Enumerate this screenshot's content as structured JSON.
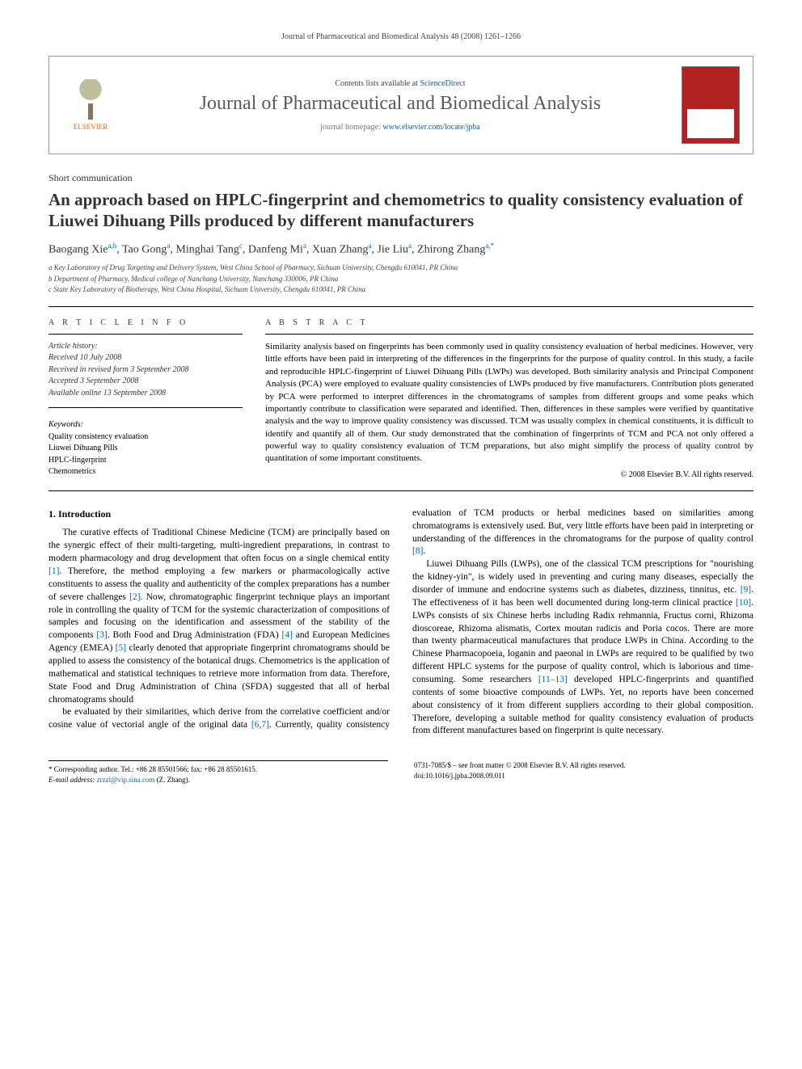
{
  "running_head": "Journal of Pharmaceutical and Biomedical Analysis 48 (2008) 1261–1266",
  "header": {
    "publisher": "ELSEVIER",
    "contents_prefix": "Contents lists available at ",
    "contents_link": "ScienceDirect",
    "journal_name": "Journal of Pharmaceutical and Biomedical Analysis",
    "homepage_prefix": "journal homepage: ",
    "homepage_link": "www.elsevier.com/locate/jpba"
  },
  "article": {
    "type": "Short communication",
    "title": "An approach based on HPLC-fingerprint and chemometrics to quality consistency evaluation of Liuwei Dihuang Pills produced by different manufacturers",
    "authors_html": "Baogang Xie<sup>a,b</sup>, Tao Gong<sup>a</sup>, Minghai Tang<sup>c</sup>, Danfeng Mi<sup>a</sup>, Xuan Zhang<sup>a</sup>, Jie Liu<sup>a</sup>, Zhirong Zhang<sup>a,*</sup>",
    "affiliations": [
      "a Key Laboratory of Drug Targeting and Delivery System, West China School of Pharmacy, Sichuan University, Chengdu 610041, PR China",
      "b Department of Pharmacy, Medical college of Nanchang University, Nanchang 330006, PR China",
      "c State Key Laboratory of Biotherapy, West China Hospital, Sichuan University, Chengdu 610041, PR China"
    ]
  },
  "info": {
    "heading": "A R T I C L E   I N F O",
    "history_label": "Article history:",
    "history": [
      "Received 10 July 2008",
      "Received in revised form 3 September 2008",
      "Accepted 3 September 2008",
      "Available online 13 September 2008"
    ],
    "keywords_label": "Keywords:",
    "keywords": [
      "Quality consistency evaluation",
      "Liuwei Dihuang Pills",
      "HPLC-fingerprint",
      "Chemometrics"
    ]
  },
  "abstract": {
    "heading": "A B S T R A C T",
    "body": "Similarity analysis based on fingerprints has been commonly used in quality consistency evaluation of herbal medicines. However, very little efforts have been paid in interpreting of the differences in the fingerprints for the purpose of quality control. In this study, a facile and reproducible HPLC-fingerprint of Liuwei Dihuang Pills (LWPs) was developed. Both similarity analysis and Principal Component Analysis (PCA) were employed to evaluate quality consistencies of LWPs produced by five manufacturers. Contribution plots generated by PCA were performed to interpret differences in the chromatograms of samples from different groups and some peaks which importantly contribute to classification were separated and identified. Then, differences in these samples were verified by quantitative analysis and the way to improve quality consistency was discussed. TCM was usually complex in chemical constituents, it is difficult to identify and quantify all of them. Our study demonstrated that the combination of fingerprints of TCM and PCA not only offered a powerful way to quality consistency evaluation of TCM preparations, but also might simplify the process of quality control by quantitation of some important constituents.",
    "copyright": "© 2008 Elsevier B.V. All rights reserved."
  },
  "intro": {
    "heading": "1. Introduction",
    "p1": "The curative effects of Traditional Chinese Medicine (TCM) are principally based on the synergic effect of their multi-targeting, multi-ingredient preparations, in contrast to modern pharmacology and drug development that often focus on a single chemical entity [1]. Therefore, the method employing a few markers or pharmacologically active constituents to assess the quality and authenticity of the complex preparations has a number of severe challenges [2]. Now, chromatographic fingerprint technique plays an important role in controlling the quality of TCM for the systemic characterization of compositions of samples and focusing on the identification and assessment of the stability of the components [3]. Both Food and Drug Administration (FDA) [4] and European Medicines Agency (EMEA) [5] clearly denoted that appropriate fingerprint chromatograms should be applied to assess the consistency of the botanical drugs. Chemometrics is the application of mathematical and statistical techniques to retrieve more information from data. Therefore, State Food and Drug Administration of China (SFDA) suggested that all of herbal chromatograms should",
    "p2": "be evaluated by their similarities, which derive from the correlative coefficient and/or cosine value of vectorial angle of the original data [6,7]. Currently, quality consistency evaluation of TCM products or herbal medicines based on similarities among chromatograms is extensively used. But, very little efforts have been paid in interpreting or understanding of the differences in the chromatograms for the purpose of quality control [8].",
    "p3": "Liuwei Dihuang Pills (LWPs), one of the classical TCM prescriptions for \"nourishing the kidney-yin\", is widely used in preventing and curing many diseases, especially the disorder of immune and endocrine systems such as diabetes, dizziness, tinnitus, etc. [9]. The effectiveness of it has been well documented during long-term clinical practice [10]. LWPs consists of six Chinese herbs including Radix rehmannia, Fructus corni, Rhizoma dioscoreae, Rhizoma alismatis, Cortex moutan radicis and Poria cocos. There are more than twenty pharmaceutical manufactures that produce LWPs in China. According to the Chinese Pharmacopoeia, loganin and paeonal in LWPs are required to be qualified by two different HPLC systems for the purpose of quality control, which is laborious and time-consuming. Some researchers [11–13] developed HPLC-fingerprints and quantified contents of some bioactive compounds of LWPs. Yet, no reports have been concerned about consistency of it from different suppliers according to their global composition. Therefore, developing a suitable method for quality consistency evaluation of products from different manufactures based on fingerprint is quite necessary."
  },
  "footer": {
    "corr_label": "* Corresponding author. Tel.: +86 28 85501566; fax: +86 28 85501615.",
    "email_label": "E-mail address:",
    "email": "zrzzl@vip.sina.com",
    "email_person": "(Z. Zhang).",
    "issn_line": "0731-7085/$ – see front matter © 2008 Elsevier B.V. All rights reserved.",
    "doi_line": "doi:10.1016/j.jpba.2008.09.011"
  },
  "colors": {
    "link": "#0066aa",
    "accent": "#ff6600",
    "cover": "#b22222",
    "text": "#000000",
    "muted": "#5a5a5a"
  }
}
